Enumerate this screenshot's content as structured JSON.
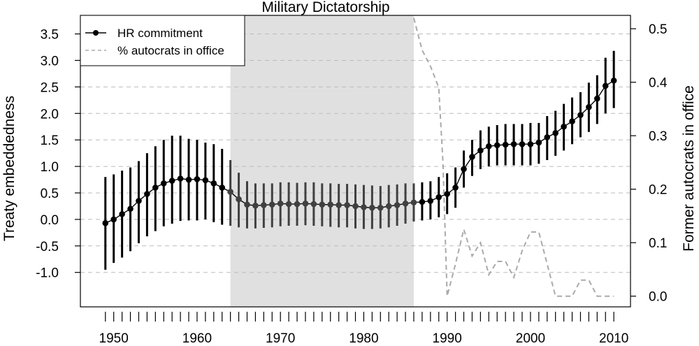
{
  "chart_data": {
    "type": "line",
    "title": "Military Dictatorship",
    "xlabel": "",
    "ylabel": "Treaty embeddedness",
    "y2label": "Former autocrats in office",
    "xlim": [
      1946,
      2012
    ],
    "ylim": [
      -1.65,
      3.85
    ],
    "y2lim": [
      -0.02,
      0.525
    ],
    "x_ticks": [
      "1950",
      "1960",
      "1970",
      "1980",
      "1990",
      "2000",
      "2010"
    ],
    "y_ticks": [
      "-1.0",
      "-0.5",
      "0.0",
      "0.5",
      "1.0",
      "1.5",
      "2.0",
      "2.5",
      "3.0",
      "3.5"
    ],
    "y2_ticks": [
      "0.0",
      "0.1",
      "0.2",
      "0.3",
      "0.4",
      "0.5"
    ],
    "grid": "horizontal dashed",
    "legend_position": "top-left",
    "legend": [
      {
        "label": "HR commitment",
        "style": "point-line",
        "color": "#000000"
      },
      {
        "label": "% autocrats in office",
        "style": "dashed",
        "color": "#aaaaaa"
      }
    ],
    "shaded_period": {
      "start": 1964,
      "end": 1986,
      "color": "#e0e0e0"
    },
    "series": [
      {
        "name": "HR commitment",
        "x": [
          1949,
          1950,
          1951,
          1952,
          1953,
          1954,
          1955,
          1956,
          1957,
          1958,
          1959,
          1960,
          1961,
          1962,
          1963,
          1964,
          1965,
          1966,
          1967,
          1968,
          1969,
          1970,
          1971,
          1972,
          1973,
          1974,
          1975,
          1976,
          1977,
          1978,
          1979,
          1980,
          1981,
          1982,
          1983,
          1984,
          1985,
          1986,
          1987,
          1988,
          1989,
          1990,
          1991,
          1992,
          1993,
          1994,
          1995,
          1996,
          1997,
          1998,
          1999,
          2000,
          2001,
          2002,
          2003,
          2004,
          2005,
          2006,
          2007,
          2008,
          2009,
          2010
        ],
        "y": [
          -0.07,
          0.0,
          0.1,
          0.2,
          0.35,
          0.48,
          0.6,
          0.68,
          0.73,
          0.77,
          0.75,
          0.76,
          0.74,
          0.68,
          0.6,
          0.52,
          0.38,
          0.28,
          0.26,
          0.27,
          0.28,
          0.3,
          0.29,
          0.29,
          0.3,
          0.29,
          0.28,
          0.28,
          0.27,
          0.27,
          0.25,
          0.23,
          0.22,
          0.22,
          0.25,
          0.27,
          0.3,
          0.32,
          0.33,
          0.35,
          0.42,
          0.48,
          0.6,
          0.95,
          1.18,
          1.3,
          1.38,
          1.4,
          1.41,
          1.42,
          1.42,
          1.42,
          1.45,
          1.55,
          1.63,
          1.75,
          1.85,
          1.97,
          2.12,
          2.28,
          2.52,
          2.62
        ],
        "lower": [
          -0.95,
          -0.82,
          -0.72,
          -0.6,
          -0.45,
          -0.32,
          -0.22,
          -0.13,
          -0.08,
          -0.03,
          -0.02,
          -0.02,
          0.0,
          -0.05,
          -0.1,
          -0.12,
          -0.15,
          -0.17,
          -0.17,
          -0.16,
          -0.15,
          -0.13,
          -0.12,
          -0.12,
          -0.11,
          -0.12,
          -0.13,
          -0.14,
          -0.15,
          -0.15,
          -0.17,
          -0.18,
          -0.18,
          -0.17,
          -0.15,
          -0.12,
          -0.08,
          -0.04,
          -0.02,
          0.0,
          0.04,
          0.1,
          0.22,
          0.6,
          0.82,
          0.95,
          1.0,
          1.02,
          1.02,
          1.02,
          1.02,
          1.02,
          1.05,
          1.12,
          1.2,
          1.3,
          1.42,
          1.55,
          1.65,
          1.8,
          2.0,
          2.1
        ],
        "upper": [
          0.8,
          0.85,
          0.92,
          0.98,
          1.1,
          1.25,
          1.38,
          1.5,
          1.58,
          1.58,
          1.52,
          1.5,
          1.45,
          1.42,
          1.33,
          1.12,
          0.88,
          0.72,
          0.68,
          0.68,
          0.68,
          0.7,
          0.7,
          0.69,
          0.7,
          0.7,
          0.68,
          0.68,
          0.67,
          0.67,
          0.66,
          0.65,
          0.64,
          0.63,
          0.65,
          0.66,
          0.68,
          0.68,
          0.7,
          0.72,
          0.8,
          0.87,
          0.98,
          1.3,
          1.5,
          1.68,
          1.75,
          1.78,
          1.8,
          1.8,
          1.8,
          1.82,
          1.82,
          1.95,
          2.05,
          2.18,
          2.3,
          2.4,
          2.58,
          2.72,
          3.05,
          3.18
        ]
      },
      {
        "name": "% autocrats in office",
        "x": [
          1986,
          1987,
          1988,
          1989,
          1989.5,
          1990,
          1991,
          1992,
          1993,
          1994,
          1995,
          1996,
          1997,
          1998,
          1999,
          2000,
          2001,
          2002,
          2003,
          2004,
          2005,
          2006,
          2007,
          2008,
          2009,
          2010
        ],
        "y": [
          0.52,
          0.46,
          0.43,
          0.39,
          0.25,
          0.0,
          0.06,
          0.125,
          0.075,
          0.1,
          0.04,
          0.065,
          0.065,
          0.035,
          0.085,
          0.12,
          0.12,
          0.06,
          0.0,
          0.0,
          0.0,
          0.03,
          0.03,
          0.0,
          0.0,
          0.0
        ]
      }
    ]
  }
}
